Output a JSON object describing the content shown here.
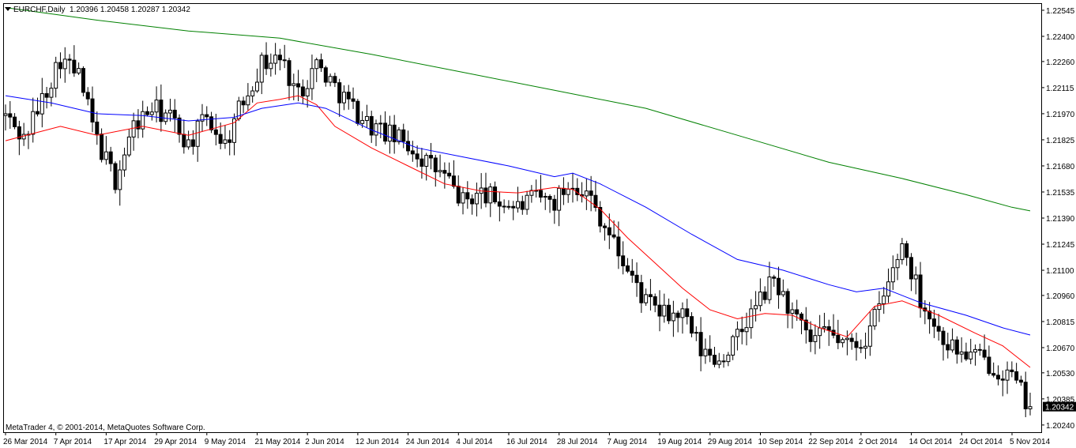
{
  "header": {
    "symbol": "EURCHF,Daily",
    "ohlc": "1.20396 1.20458 1.20287 1.20342"
  },
  "copyright": "MetaTrader 4, © 2001-2014, MetaQuotes Software Corp.",
  "current_price_label": "1.20342",
  "chart_data": {
    "type": "candlestick",
    "title": "EURCHF,Daily",
    "ylim": [
      1.202,
      1.2258
    ],
    "y_ticks": [
      "1.22545",
      "1.22400",
      "1.22260",
      "1.22115",
      "1.21970",
      "1.21825",
      "1.21680",
      "1.21535",
      "1.21390",
      "1.21245",
      "1.21100",
      "1.20960",
      "1.20815",
      "1.20670",
      "1.20530",
      "1.20385",
      "1.20240"
    ],
    "x_ticks": [
      "26 Mar 2014",
      "7 Apr 2014",
      "17 Apr 2014",
      "29 Apr 2014",
      "9 May 2014",
      "21 May 2014",
      "2 Jun 2014",
      "12 Jun 2014",
      "24 Jun 2014",
      "4 Jul 2014",
      "16 Jul 2014",
      "28 Jul 2014",
      "7 Aug 2014",
      "19 Aug 2014",
      "29 Aug 2014",
      "10 Sep 2014",
      "22 Sep 2014",
      "2 Oct 2014",
      "14 Oct 2014",
      "24 Oct 2014",
      "5 Nov 2014"
    ],
    "grid": false,
    "series_colors": {
      "candles": "#000000",
      "ma_fast": "#ff0000",
      "ma_mid": "#0000ff",
      "ma_slow": "#008000"
    },
    "close_path": [
      [
        0,
        1.2196
      ],
      [
        4,
        1.2183
      ],
      [
        8,
        1.2205
      ],
      [
        12,
        1.2228
      ],
      [
        16,
        1.2218
      ],
      [
        20,
        1.2182
      ],
      [
        24,
        1.216
      ],
      [
        28,
        1.219
      ],
      [
        32,
        1.22
      ],
      [
        36,
        1.2195
      ],
      [
        40,
        1.218
      ],
      [
        44,
        1.2195
      ],
      [
        48,
        1.218
      ],
      [
        52,
        1.2205
      ],
      [
        56,
        1.2225
      ],
      [
        60,
        1.2228
      ],
      [
        64,
        1.2208
      ],
      [
        68,
        1.2225
      ],
      [
        72,
        1.2212
      ],
      [
        76,
        1.22
      ],
      [
        80,
        1.219
      ],
      [
        84,
        1.2185
      ],
      [
        88,
        1.218
      ],
      [
        92,
        1.217
      ],
      [
        96,
        1.2162
      ],
      [
        100,
        1.2148
      ],
      [
        104,
        1.2153
      ],
      [
        108,
        1.2148
      ],
      [
        112,
        1.2145
      ],
      [
        116,
        1.215
      ],
      [
        120,
        1.2148
      ],
      [
        124,
        1.216
      ],
      [
        128,
        1.215
      ],
      [
        132,
        1.213
      ],
      [
        136,
        1.211
      ],
      [
        140,
        1.2092
      ],
      [
        144,
        1.2085
      ],
      [
        148,
        1.2085
      ],
      [
        152,
        1.2065
      ],
      [
        156,
        1.206
      ],
      [
        160,
        1.2072
      ],
      [
        164,
        1.209
      ],
      [
        168,
        1.2105
      ],
      [
        172,
        1.2085
      ],
      [
        176,
        1.207
      ],
      [
        180,
        1.2075
      ],
      [
        184,
        1.2068
      ],
      [
        188,
        1.2072
      ],
      [
        192,
        1.2095
      ],
      [
        196,
        1.2125
      ],
      [
        200,
        1.2095
      ],
      [
        204,
        1.2075
      ],
      [
        208,
        1.2065
      ],
      [
        212,
        1.2062
      ],
      [
        216,
        1.2057
      ],
      [
        220,
        1.205
      ],
      [
        224,
        1.2034
      ]
    ],
    "series": [
      {
        "name": "",
        "color": "#ff0000",
        "points": [
          [
            0,
            1.2182
          ],
          [
            12,
            1.219
          ],
          [
            20,
            1.2185
          ],
          [
            30,
            1.219
          ],
          [
            40,
            1.2185
          ],
          [
            50,
            1.2192
          ],
          [
            55,
            1.2203
          ],
          [
            60,
            1.2205
          ],
          [
            64,
            1.2207
          ],
          [
            68,
            1.2202
          ],
          [
            72,
            1.219
          ],
          [
            80,
            1.2178
          ],
          [
            88,
            1.2168
          ],
          [
            96,
            1.2158
          ],
          [
            104,
            1.2154
          ],
          [
            112,
            1.2153
          ],
          [
            120,
            1.2156
          ],
          [
            124,
            1.2155
          ],
          [
            130,
            1.2144
          ],
          [
            136,
            1.2128
          ],
          [
            142,
            1.2114
          ],
          [
            148,
            1.21
          ],
          [
            154,
            1.2088
          ],
          [
            160,
            1.2083
          ],
          [
            166,
            1.2086
          ],
          [
            172,
            1.2085
          ],
          [
            178,
            1.2078
          ],
          [
            184,
            1.2073
          ],
          [
            190,
            1.209
          ],
          [
            196,
            1.2093
          ],
          [
            204,
            1.2085
          ],
          [
            212,
            1.2075
          ],
          [
            218,
            1.2068
          ],
          [
            222,
            1.206
          ],
          [
            224,
            1.2056
          ]
        ]
      },
      {
        "name": "",
        "color": "#0000ff",
        "points": [
          [
            0,
            1.2207
          ],
          [
            10,
            1.2203
          ],
          [
            20,
            1.2197
          ],
          [
            30,
            1.2196
          ],
          [
            40,
            1.2193
          ],
          [
            50,
            1.2195
          ],
          [
            56,
            1.22
          ],
          [
            64,
            1.2203
          ],
          [
            70,
            1.22
          ],
          [
            80,
            1.2188
          ],
          [
            90,
            1.2178
          ],
          [
            100,
            1.2173
          ],
          [
            110,
            1.2168
          ],
          [
            120,
            1.2162
          ],
          [
            124,
            1.2164
          ],
          [
            130,
            1.2158
          ],
          [
            140,
            1.2145
          ],
          [
            150,
            1.213
          ],
          [
            160,
            1.2116
          ],
          [
            170,
            1.211
          ],
          [
            180,
            1.2102
          ],
          [
            186,
            1.2098
          ],
          [
            192,
            1.21
          ],
          [
            200,
            1.2092
          ],
          [
            210,
            1.2085
          ],
          [
            218,
            1.2078
          ],
          [
            224,
            1.2074
          ]
        ]
      },
      {
        "name": "",
        "color": "#008000",
        "points": [
          [
            0,
            1.2256
          ],
          [
            20,
            1.2249
          ],
          [
            40,
            1.2243
          ],
          [
            60,
            1.2239
          ],
          [
            80,
            1.223
          ],
          [
            100,
            1.222
          ],
          [
            120,
            1.221
          ],
          [
            140,
            1.22
          ],
          [
            160,
            1.2185
          ],
          [
            180,
            1.217
          ],
          [
            196,
            1.2161
          ],
          [
            210,
            1.2152
          ],
          [
            220,
            1.2145
          ],
          [
            224,
            1.2143
          ]
        ]
      }
    ]
  }
}
